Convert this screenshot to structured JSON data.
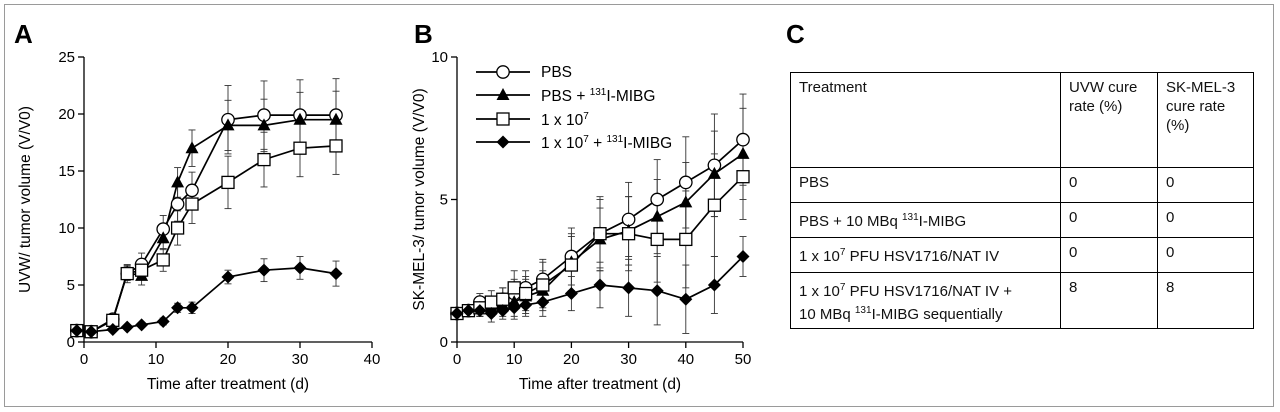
{
  "panels": {
    "a": "A",
    "b": "B",
    "c": "C"
  },
  "chart_data": [
    {
      "type": "line",
      "panel": "A",
      "xlabel": "Time after treatment (d)",
      "ylabel": "UVW/ tumor volume (V/V0)",
      "xlim": [
        0,
        40
      ],
      "ylim": [
        0,
        25
      ],
      "xticks": [
        0,
        10,
        20,
        30,
        40
      ],
      "yticks": [
        0,
        5,
        10,
        15,
        20,
        25
      ],
      "grid": false,
      "series": [
        {
          "name": "PBS",
          "marker": "circle-open",
          "x": [
            -1,
            1,
            4,
            6,
            8,
            11,
            13,
            15,
            20,
            25,
            30,
            35
          ],
          "y": [
            1,
            0.9,
            2,
            6,
            6.8,
            9.9,
            12.1,
            13.3,
            19.5,
            19.9,
            19.9,
            19.9
          ],
          "err": [
            0,
            0,
            0.3,
            0.8,
            1,
            1.2,
            1.5,
            1.6,
            3,
            3,
            3.1,
            3.2
          ]
        },
        {
          "name": "PBS + 131I-MIBG",
          "marker": "triangle-filled",
          "x": [
            -1,
            1,
            4,
            6,
            8,
            11,
            13,
            15,
            20,
            25,
            30,
            35
          ],
          "y": [
            1,
            0.9,
            1.9,
            6.1,
            5.8,
            9.1,
            14,
            17,
            19,
            19,
            19.5,
            19.5
          ],
          "err": [
            0,
            0,
            0.3,
            0.6,
            0.8,
            1,
            1.3,
            1.6,
            2.2,
            2.3,
            2.4,
            2.5
          ]
        },
        {
          "name": "1 x 10^7",
          "marker": "square-open",
          "x": [
            -1,
            1,
            4,
            6,
            8,
            11,
            13,
            15,
            20,
            25,
            30,
            35
          ],
          "y": [
            1,
            0.9,
            1.9,
            6,
            6.3,
            7.2,
            10,
            12.1,
            14,
            16,
            17,
            17.2
          ],
          "err": [
            0,
            0,
            0.3,
            0.6,
            0.8,
            1,
            1.5,
            1.7,
            2.3,
            2.4,
            2.5,
            2.5
          ]
        },
        {
          "name": "1 x 10^7 + 131I-MIBG",
          "marker": "diamond-filled",
          "x": [
            -1,
            1,
            4,
            6,
            8,
            11,
            13,
            15,
            20,
            25,
            30,
            35
          ],
          "y": [
            1,
            0.9,
            1.1,
            1.3,
            1.5,
            1.8,
            3,
            3,
            5.7,
            6.3,
            6.5,
            6
          ],
          "err": [
            0,
            0,
            0.1,
            0.2,
            0.2,
            0.3,
            0.4,
            0.5,
            0.6,
            1,
            1,
            1.1
          ]
        }
      ]
    },
    {
      "type": "line",
      "panel": "B",
      "xlabel": "Time after treatment (d)",
      "ylabel": "SK-MEL-3/ tumor volume (V/V0)",
      "xlim": [
        0,
        50
      ],
      "ylim": [
        0,
        10
      ],
      "xticks": [
        0,
        10,
        20,
        30,
        40,
        50
      ],
      "yticks": [
        0,
        5,
        10
      ],
      "grid": false,
      "legend_position": "top-left",
      "series": [
        {
          "name": "PBS",
          "marker": "circle-open",
          "x": [
            0,
            2,
            4,
            6,
            8,
            10,
            12,
            15,
            20,
            25,
            30,
            35,
            40,
            45,
            50
          ],
          "y": [
            1,
            1.1,
            1.4,
            1.3,
            1.5,
            1.7,
            1.9,
            2.2,
            3,
            3.8,
            4.3,
            5,
            5.6,
            6.2,
            7.1
          ],
          "err": [
            0.1,
            0.2,
            0.3,
            0.3,
            0.4,
            0.5,
            0.6,
            0.7,
            1,
            1.2,
            1.3,
            1.4,
            1.6,
            1.8,
            1.6
          ]
        },
        {
          "name": "PBS + 131I-MIBG",
          "marker": "triangle-filled",
          "x": [
            0,
            2,
            4,
            6,
            8,
            10,
            12,
            15,
            20,
            25,
            30,
            35,
            40,
            45,
            50
          ],
          "y": [
            1,
            1.1,
            1.2,
            1.2,
            1.3,
            1.4,
            1.6,
            1.8,
            2.8,
            3.6,
            3.9,
            4.4,
            4.9,
            5.9,
            6.6
          ],
          "err": [
            0.1,
            0.2,
            0.3,
            0.3,
            0.4,
            0.5,
            0.6,
            0.7,
            1,
            1.1,
            1.2,
            1.3,
            1.4,
            1.5,
            1.6
          ]
        },
        {
          "name": "1 x 10^7",
          "marker": "square-open",
          "x": [
            0,
            2,
            4,
            6,
            8,
            10,
            12,
            15,
            20,
            25,
            30,
            35,
            40,
            45,
            50
          ],
          "y": [
            1,
            1.1,
            1.2,
            1.4,
            1.5,
            1.9,
            1.7,
            2,
            2.7,
            3.8,
            3.8,
            3.6,
            3.6,
            4.8,
            5.8
          ],
          "err": [
            0.1,
            0.2,
            0.3,
            0.4,
            0.4,
            0.6,
            0.6,
            0.8,
            1,
            1.3,
            1.3,
            1.5,
            1.7,
            1.8,
            1.5
          ]
        },
        {
          "name": "1 x 10^7 + 131I-MIBG",
          "marker": "diamond-filled",
          "x": [
            0,
            2,
            4,
            6,
            8,
            10,
            12,
            15,
            20,
            25,
            30,
            35,
            40,
            45,
            50
          ],
          "y": [
            1,
            1.1,
            1.1,
            1,
            1.1,
            1.2,
            1.3,
            1.4,
            1.7,
            2,
            1.9,
            1.8,
            1.5,
            2,
            3
          ],
          "err": [
            0.1,
            0.2,
            0.2,
            0.3,
            0.3,
            0.4,
            0.4,
            0.5,
            0.6,
            0.8,
            1,
            1.2,
            1.2,
            1,
            0.7
          ]
        }
      ]
    }
  ],
  "legend": [
    {
      "marker": "circle-open",
      "text": "PBS"
    },
    {
      "marker": "triangle-filled",
      "pre": "PBS + ",
      "sup": "131",
      "post": "I-MIBG"
    },
    {
      "marker": "square-open",
      "pre": "1 x 10",
      "sup": "7",
      "post": ""
    },
    {
      "marker": "diamond-filled",
      "pre": "1 x 10",
      "sup": "7",
      "post": " + ",
      "sup2": "131",
      "post2": "I-MIBG"
    }
  ],
  "table": {
    "header": {
      "c1": "Treatment",
      "c2": "UVW cure rate (%)",
      "c3": "SK-MEL-3 cure rate (%)"
    },
    "rows": [
      {
        "c1_pre": "PBS",
        "c2": "0",
        "c3": "0"
      },
      {
        "c1_pre": "PBS + 10 MBq ",
        "c1_sup": "131",
        "c1_post": "I-MIBG",
        "c2": "0",
        "c3": "0"
      },
      {
        "c1_pre": "1 x 10",
        "c1_sup": "7",
        "c1_post": " PFU HSV1716/NAT IV",
        "c2": "0",
        "c3": "0"
      },
      {
        "c1_pre": "1 x 10",
        "c1_sup": "7",
        "c1_post": " PFU HSV1716/NAT IV +",
        "c1_line2_pre": "10 MBq ",
        "c1_line2_sup": "131",
        "c1_line2_post": "I-MIBG sequentially",
        "c2": "8",
        "c3": "8"
      }
    ]
  }
}
